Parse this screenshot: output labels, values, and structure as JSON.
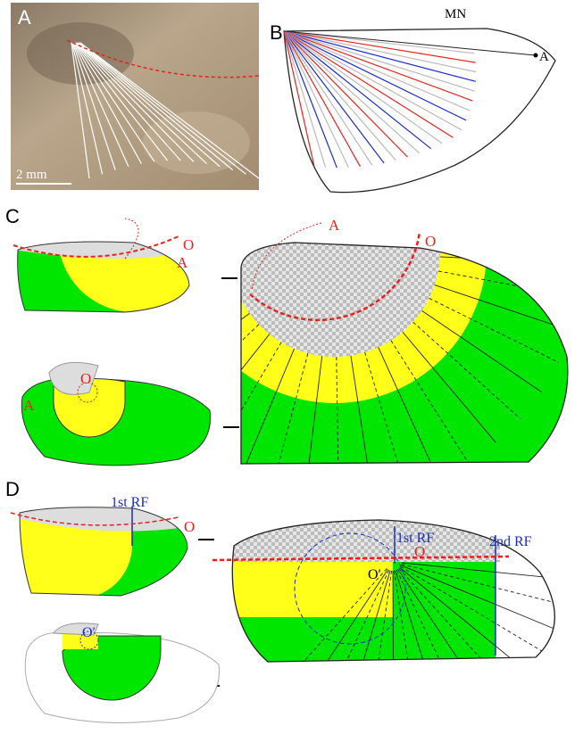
{
  "panel_a": {
    "label": "A",
    "scale_bar": "2 mm"
  },
  "panel_b": {
    "label": "B",
    "marker": "MN",
    "point": "A"
  },
  "panel_c": {
    "label": "C",
    "top_small": {
      "origin": "O",
      "point": "A"
    },
    "large": {
      "point": "A",
      "origin": "O"
    },
    "bottom_small": {
      "origin": "O",
      "point": "A"
    }
  },
  "panel_d": {
    "label": "D",
    "top_small": {
      "fold": "1st RF",
      "origin": "O"
    },
    "large": {
      "fold1": "1st RF",
      "fold2": "2nd RF",
      "origin": "O",
      "center": "O′"
    },
    "bottom_small": {
      "center": "O′"
    }
  }
}
